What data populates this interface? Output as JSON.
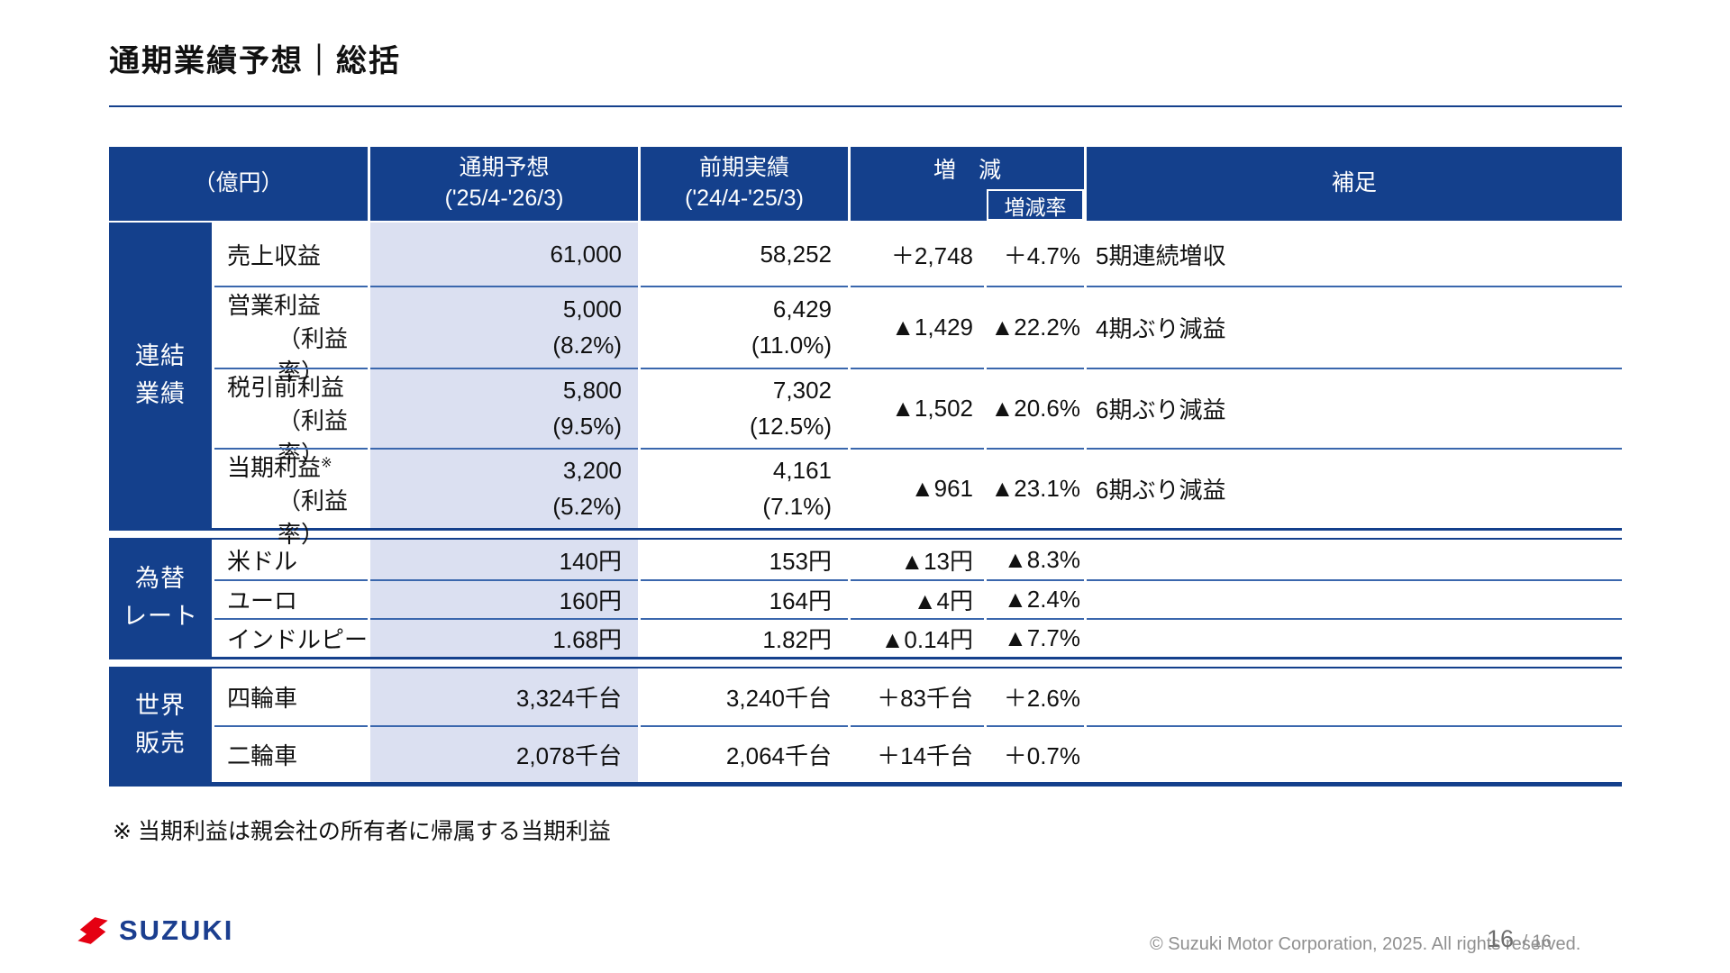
{
  "page": {
    "title": "通期業績予想｜総括",
    "footnote": "※ 当期利益は親会社の所有者に帰属する当期利益",
    "footer": {
      "logo_text": "SUZUKI",
      "copyright": "© Suzuki Motor Corporation, 2025. All rights reserved.",
      "page_number": "16",
      "page_total": "/ 16"
    }
  },
  "colors": {
    "navy": "#14408c",
    "highlight": "#dbe0f1",
    "row_line": "#3a67ad",
    "logo_red": "#e50012",
    "logo_navy": "#1b3e8f",
    "muted": "#909090"
  },
  "table": {
    "header": {
      "unit_label": "（億円）",
      "forecast": [
        "通期予想",
        "('25/4-'26/3)"
      ],
      "previous": [
        "前期実績",
        "('24/4-'25/3)"
      ],
      "change": "増　減",
      "change_rate": "増減率",
      "note": "補足"
    },
    "sections": [
      {
        "group": [
          "連結",
          "業績"
        ],
        "rows": [
          {
            "label": "売上収益",
            "forecast": "61,000",
            "previous": "58,252",
            "change": "＋2,748",
            "rate": "＋4.7%",
            "note": "5期連続増収"
          },
          {
            "label": "営業利益",
            "label_sub": "（利益率）",
            "forecast": "5,000",
            "forecast_sub": "(8.2%)",
            "previous": "6,429",
            "previous_sub": "(11.0%)",
            "change": "▲1,429",
            "rate": "▲22.2%",
            "note": "4期ぶり減益"
          },
          {
            "label": "税引前利益",
            "label_sub": "（利益率）",
            "forecast": "5,800",
            "forecast_sub": "(9.5%)",
            "previous": "7,302",
            "previous_sub": "(12.5%)",
            "change": "▲1,502",
            "rate": "▲20.6%",
            "note": "6期ぶり減益"
          },
          {
            "label": "当期利益",
            "label_sup": "※",
            "label_sub": "（利益率）",
            "forecast": "3,200",
            "forecast_sub": "(5.2%)",
            "previous": "4,161",
            "previous_sub": "(7.1%)",
            "change": "▲961",
            "rate": "▲23.1%",
            "note": "6期ぶり減益"
          }
        ]
      },
      {
        "group": [
          "為替",
          "レート"
        ],
        "rows": [
          {
            "label": "米ドル",
            "forecast": "140円",
            "previous": "153円",
            "change": "▲13円",
            "rate": "▲8.3%",
            "note": ""
          },
          {
            "label": "ユーロ",
            "forecast": "160円",
            "previous": "164円",
            "change": "▲4円",
            "rate": "▲2.4%",
            "note": ""
          },
          {
            "label": "インドルピー",
            "forecast": "1.68円",
            "previous": "1.82円",
            "change": "▲0.14円",
            "rate": "▲7.7%",
            "note": ""
          }
        ]
      },
      {
        "group": [
          "世界",
          "販売"
        ],
        "rows": [
          {
            "label": "四輪車",
            "forecast": "3,324千台",
            "previous": "3,240千台",
            "change": "＋83千台",
            "rate": "＋2.6%",
            "note": ""
          },
          {
            "label": "二輪車",
            "forecast": "2,078千台",
            "previous": "2,064千台",
            "change": "＋14千台",
            "rate": "＋0.7%",
            "note": ""
          }
        ]
      }
    ]
  }
}
